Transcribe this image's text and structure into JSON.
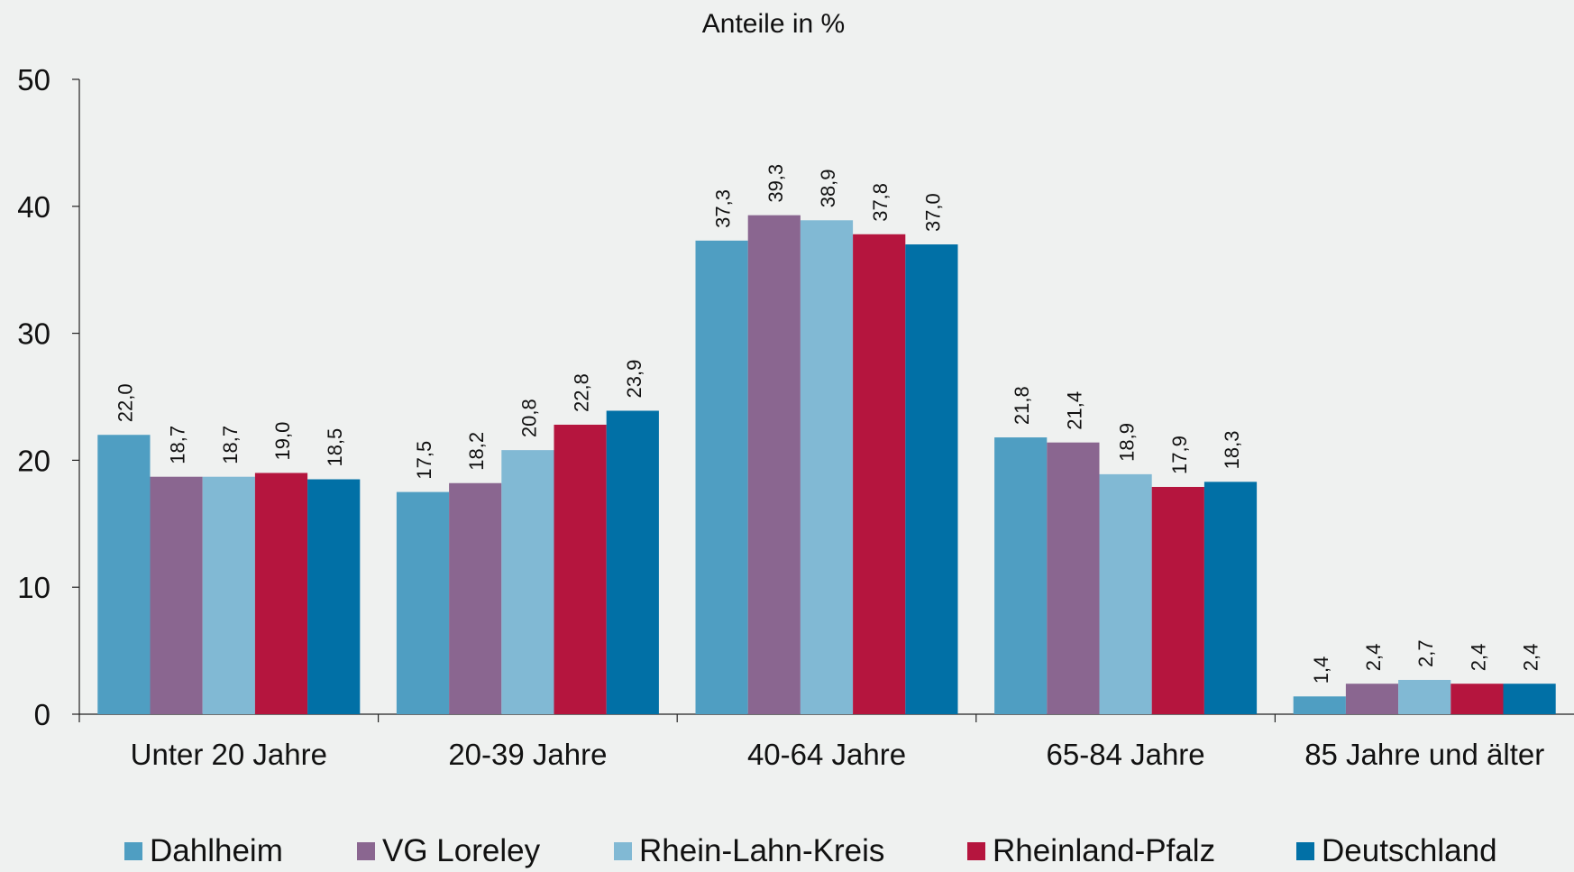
{
  "chart_data": {
    "type": "bar",
    "title": "Anteile in %",
    "xlabel": "",
    "ylabel": "",
    "ylim": [
      0,
      50
    ],
    "yticks": [
      0,
      10,
      20,
      30,
      40,
      50
    ],
    "categories": [
      "Unter 20 Jahre",
      "20-39 Jahre",
      "40-64 Jahre",
      "65-84 Jahre",
      "85 Jahre und älter"
    ],
    "series": [
      {
        "name": "Dahlheim",
        "color": "#4f9ec2",
        "values": [
          22.0,
          17.5,
          37.3,
          21.8,
          1.4
        ],
        "labels": [
          "22,0",
          "17,5",
          "37,3",
          "21,8",
          "1,4"
        ]
      },
      {
        "name": "VG Loreley",
        "color": "#8a6690",
        "values": [
          18.7,
          18.2,
          39.3,
          21.4,
          2.4
        ],
        "labels": [
          "18,7",
          "18,2",
          "39,3",
          "21,4",
          "2,4"
        ]
      },
      {
        "name": "Rhein-Lahn-Kreis",
        "color": "#81b9d4",
        "values": [
          18.7,
          20.8,
          38.9,
          18.9,
          2.7
        ],
        "labels": [
          "18,7",
          "20,8",
          "38,9",
          "18,9",
          "2,7"
        ]
      },
      {
        "name": "Rheinland-Pfalz",
        "color": "#b5153e",
        "values": [
          19.0,
          22.8,
          37.8,
          17.9,
          2.4
        ],
        "labels": [
          "19,0",
          "22,8",
          "37,8",
          "17,9",
          "2,4"
        ]
      },
      {
        "name": "Deutschland",
        "color": "#0170a6",
        "values": [
          18.5,
          23.9,
          37.0,
          18.3,
          2.4
        ],
        "labels": [
          "18,5",
          "23,9",
          "37,0",
          "18,3",
          "2,4"
        ]
      }
    ],
    "grid": false,
    "legend": "bottom"
  }
}
